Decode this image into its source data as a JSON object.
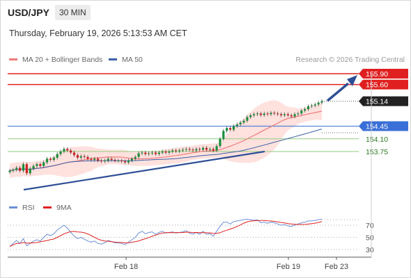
{
  "header": {
    "symbol": "USD/JPY",
    "timeframe": "30 MIN",
    "datetime": "Thursday, February 19, 2026 5:13:53 AM CET"
  },
  "credit": "Research © 2026 Trading Central",
  "colors": {
    "resistance": "#e02020",
    "support": "#3a6fd8",
    "supportMinor": "#8fce7e",
    "price": "#222222",
    "bollinger": "#ffd7d3",
    "ma20": "#f07a7a",
    "ma50": "#3b5fa8",
    "trend": "#2e4f96",
    "bullish": "#1a8f3a",
    "bearish": "#cc2222",
    "rsi": "#6b8fd6",
    "rsi_ma": "#e02020"
  },
  "chart_data": {
    "type": "candlestick",
    "instrument": "USD/JPY",
    "timeframe": "30 MIN",
    "legend": [
      "MA 20 + Bollinger Bands",
      "MA 50"
    ],
    "yrange": [
      153.0,
      156.0
    ],
    "x_ticks": [
      "Feb 18",
      "Feb 19",
      "Feb 23"
    ],
    "price_levels": [
      {
        "label": "155.90",
        "value": 155.9,
        "type": "resistance"
      },
      {
        "label": "155.60",
        "value": 155.6,
        "type": "resistance"
      },
      {
        "label": "155.14",
        "value": 155.14,
        "type": "price"
      },
      {
        "label": "154.45",
        "value": 154.45,
        "type": "support"
      },
      {
        "label": "154.10",
        "value": 154.1,
        "type": "supportMinor"
      },
      {
        "label": "153.75",
        "value": 153.75,
        "type": "supportMinor"
      }
    ],
    "close": [
      153.22,
      153.25,
      153.3,
      153.22,
      153.4,
      153.15,
      153.28,
      153.35,
      153.4,
      153.35,
      153.45,
      153.55,
      153.52,
      153.58,
      153.68,
      153.75,
      153.82,
      153.78,
      153.72,
      153.65,
      153.58,
      153.62,
      153.6,
      153.55,
      153.52,
      153.55,
      153.5,
      153.48,
      153.5,
      153.55,
      153.52,
      153.5,
      153.5,
      153.48,
      153.45,
      153.5,
      153.55,
      153.6,
      153.7,
      153.72,
      153.68,
      153.7,
      153.72,
      153.68,
      153.72,
      153.75,
      153.72,
      153.75,
      153.78,
      153.76,
      153.78,
      153.8,
      153.82,
      153.8,
      153.78,
      153.82,
      153.8,
      153.85,
      153.8,
      153.82,
      153.78,
      153.9,
      154.1,
      154.32,
      154.4,
      154.35,
      154.45,
      154.5,
      154.55,
      154.6,
      154.7,
      154.75,
      154.78,
      154.8,
      154.76,
      154.8,
      154.78,
      154.82,
      154.8,
      154.78,
      154.75,
      154.78,
      154.75,
      154.72,
      154.78,
      154.8,
      154.88,
      154.92,
      155.0,
      155.02,
      155.05,
      155.1,
      155.14
    ],
    "rsi": {
      "ylim": [
        0,
        100
      ],
      "ticks": [
        30,
        50,
        70
      ],
      "legend": [
        "RSI",
        "9MA"
      ],
      "values": [
        35,
        40,
        45,
        40,
        48,
        36,
        40,
        44,
        46,
        44,
        50,
        55,
        53,
        56,
        62,
        66,
        70,
        65,
        58,
        52,
        48,
        50,
        47,
        44,
        42,
        44,
        40,
        39,
        41,
        45,
        43,
        41,
        41,
        40,
        38,
        42,
        46,
        50,
        57,
        60,
        56,
        58,
        59,
        55,
        58,
        60,
        57,
        58,
        59,
        57,
        58,
        59,
        61,
        57,
        55,
        58,
        55,
        60,
        55,
        56,
        52,
        60,
        68,
        75,
        75,
        72,
        76,
        77,
        78,
        79,
        80,
        79,
        78,
        79,
        74,
        75,
        73,
        75,
        74,
        72,
        70,
        71,
        69,
        68,
        70,
        72,
        74,
        75,
        77,
        77,
        78,
        79,
        80
      ]
    }
  }
}
